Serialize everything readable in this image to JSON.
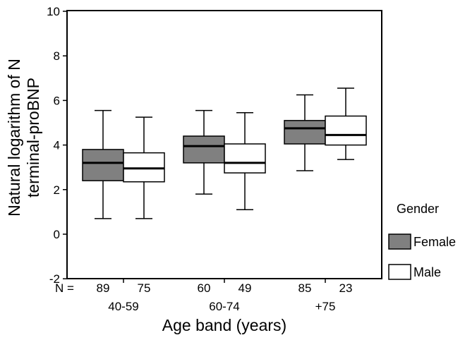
{
  "chart_data": {
    "type": "boxplot",
    "title": "",
    "xlabel": "Age band (years)",
    "ylabel_lines": [
      "Natural logarithm of N",
      "terminal-proBNP"
    ],
    "ylim": [
      -2,
      10
    ],
    "yticks": [
      -2,
      0,
      2,
      4,
      6,
      8,
      10
    ],
    "n_prefix": "N =",
    "legend_title": "Gender",
    "legend_position": "right",
    "grid": false,
    "groups": [
      {
        "label": "40-59",
        "n": [
          89,
          75
        ]
      },
      {
        "label": "60-74",
        "n": [
          60,
          49
        ]
      },
      {
        "label": "+75",
        "n": [
          85,
          23
        ]
      }
    ],
    "series": [
      {
        "name": "Female",
        "color": "#808080",
        "boxes": [
          {
            "whisker_low": 0.7,
            "q1": 2.4,
            "median": 3.2,
            "q3": 3.8,
            "whisker_high": 5.55
          },
          {
            "whisker_low": 1.8,
            "q1": 3.2,
            "median": 3.95,
            "q3": 4.4,
            "whisker_high": 5.55
          },
          {
            "whisker_low": 2.85,
            "q1": 4.05,
            "median": 4.75,
            "q3": 5.1,
            "whisker_high": 6.25
          }
        ]
      },
      {
        "name": "Male",
        "color": "#ffffff",
        "boxes": [
          {
            "whisker_low": 0.7,
            "q1": 2.35,
            "median": 2.95,
            "q3": 3.65,
            "whisker_high": 5.25
          },
          {
            "whisker_low": 1.1,
            "q1": 2.75,
            "median": 3.2,
            "q3": 4.05,
            "whisker_high": 5.45
          },
          {
            "whisker_low": 3.35,
            "q1": 4.0,
            "median": 4.45,
            "q3": 5.3,
            "whisker_high": 6.55
          }
        ]
      }
    ]
  }
}
